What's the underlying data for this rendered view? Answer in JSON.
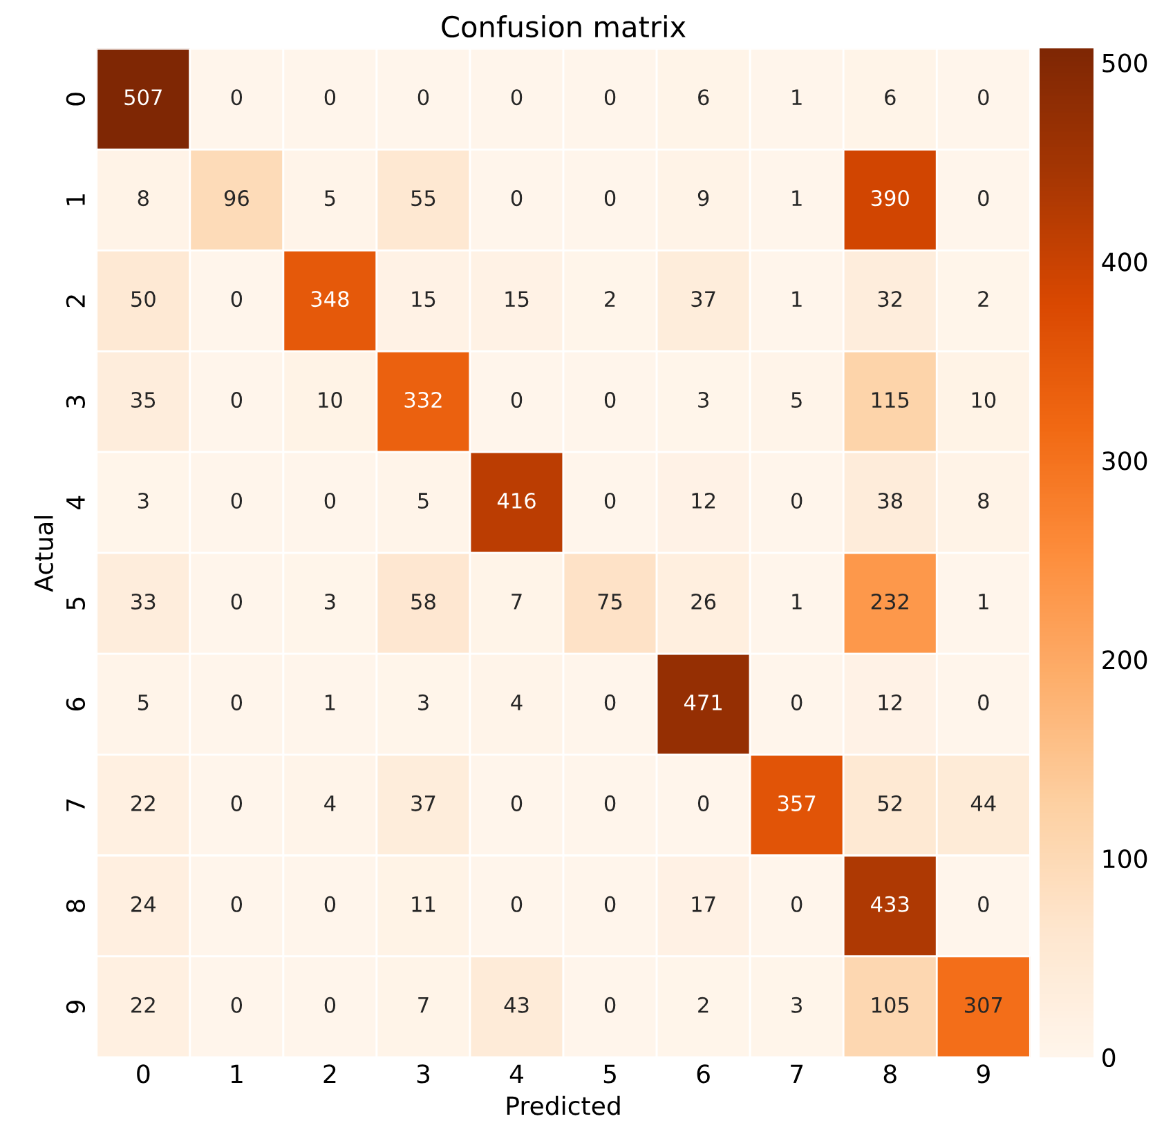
{
  "chart_data": {
    "type": "heatmap",
    "title": "Confusion matrix",
    "xlabel": "Predicted",
    "ylabel": "Actual",
    "categories": [
      "0",
      "1",
      "2",
      "3",
      "4",
      "5",
      "6",
      "7",
      "8",
      "9"
    ],
    "y_categories": [
      "0",
      "1",
      "2",
      "3",
      "4",
      "5",
      "6",
      "7",
      "8",
      "9"
    ],
    "cells": [
      [
        507,
        0,
        0,
        0,
        0,
        0,
        6,
        1,
        6,
        0
      ],
      [
        8,
        96,
        5,
        55,
        0,
        0,
        9,
        1,
        390,
        0
      ],
      [
        50,
        0,
        348,
        15,
        15,
        2,
        37,
        1,
        32,
        2
      ],
      [
        35,
        0,
        10,
        332,
        0,
        0,
        3,
        5,
        115,
        10
      ],
      [
        3,
        0,
        0,
        5,
        416,
        0,
        12,
        0,
        38,
        8
      ],
      [
        33,
        0,
        3,
        58,
        7,
        75,
        26,
        1,
        232,
        1
      ],
      [
        5,
        0,
        1,
        3,
        4,
        0,
        471,
        0,
        12,
        0
      ],
      [
        22,
        0,
        4,
        37,
        0,
        0,
        0,
        357,
        52,
        44
      ],
      [
        24,
        0,
        0,
        11,
        0,
        0,
        17,
        0,
        433,
        0
      ],
      [
        22,
        0,
        0,
        7,
        43,
        0,
        2,
        3,
        105,
        307
      ]
    ],
    "clim": [
      0,
      507
    ],
    "cticks": [
      0,
      100,
      200,
      300,
      400,
      500
    ],
    "data_labels": true
  }
}
